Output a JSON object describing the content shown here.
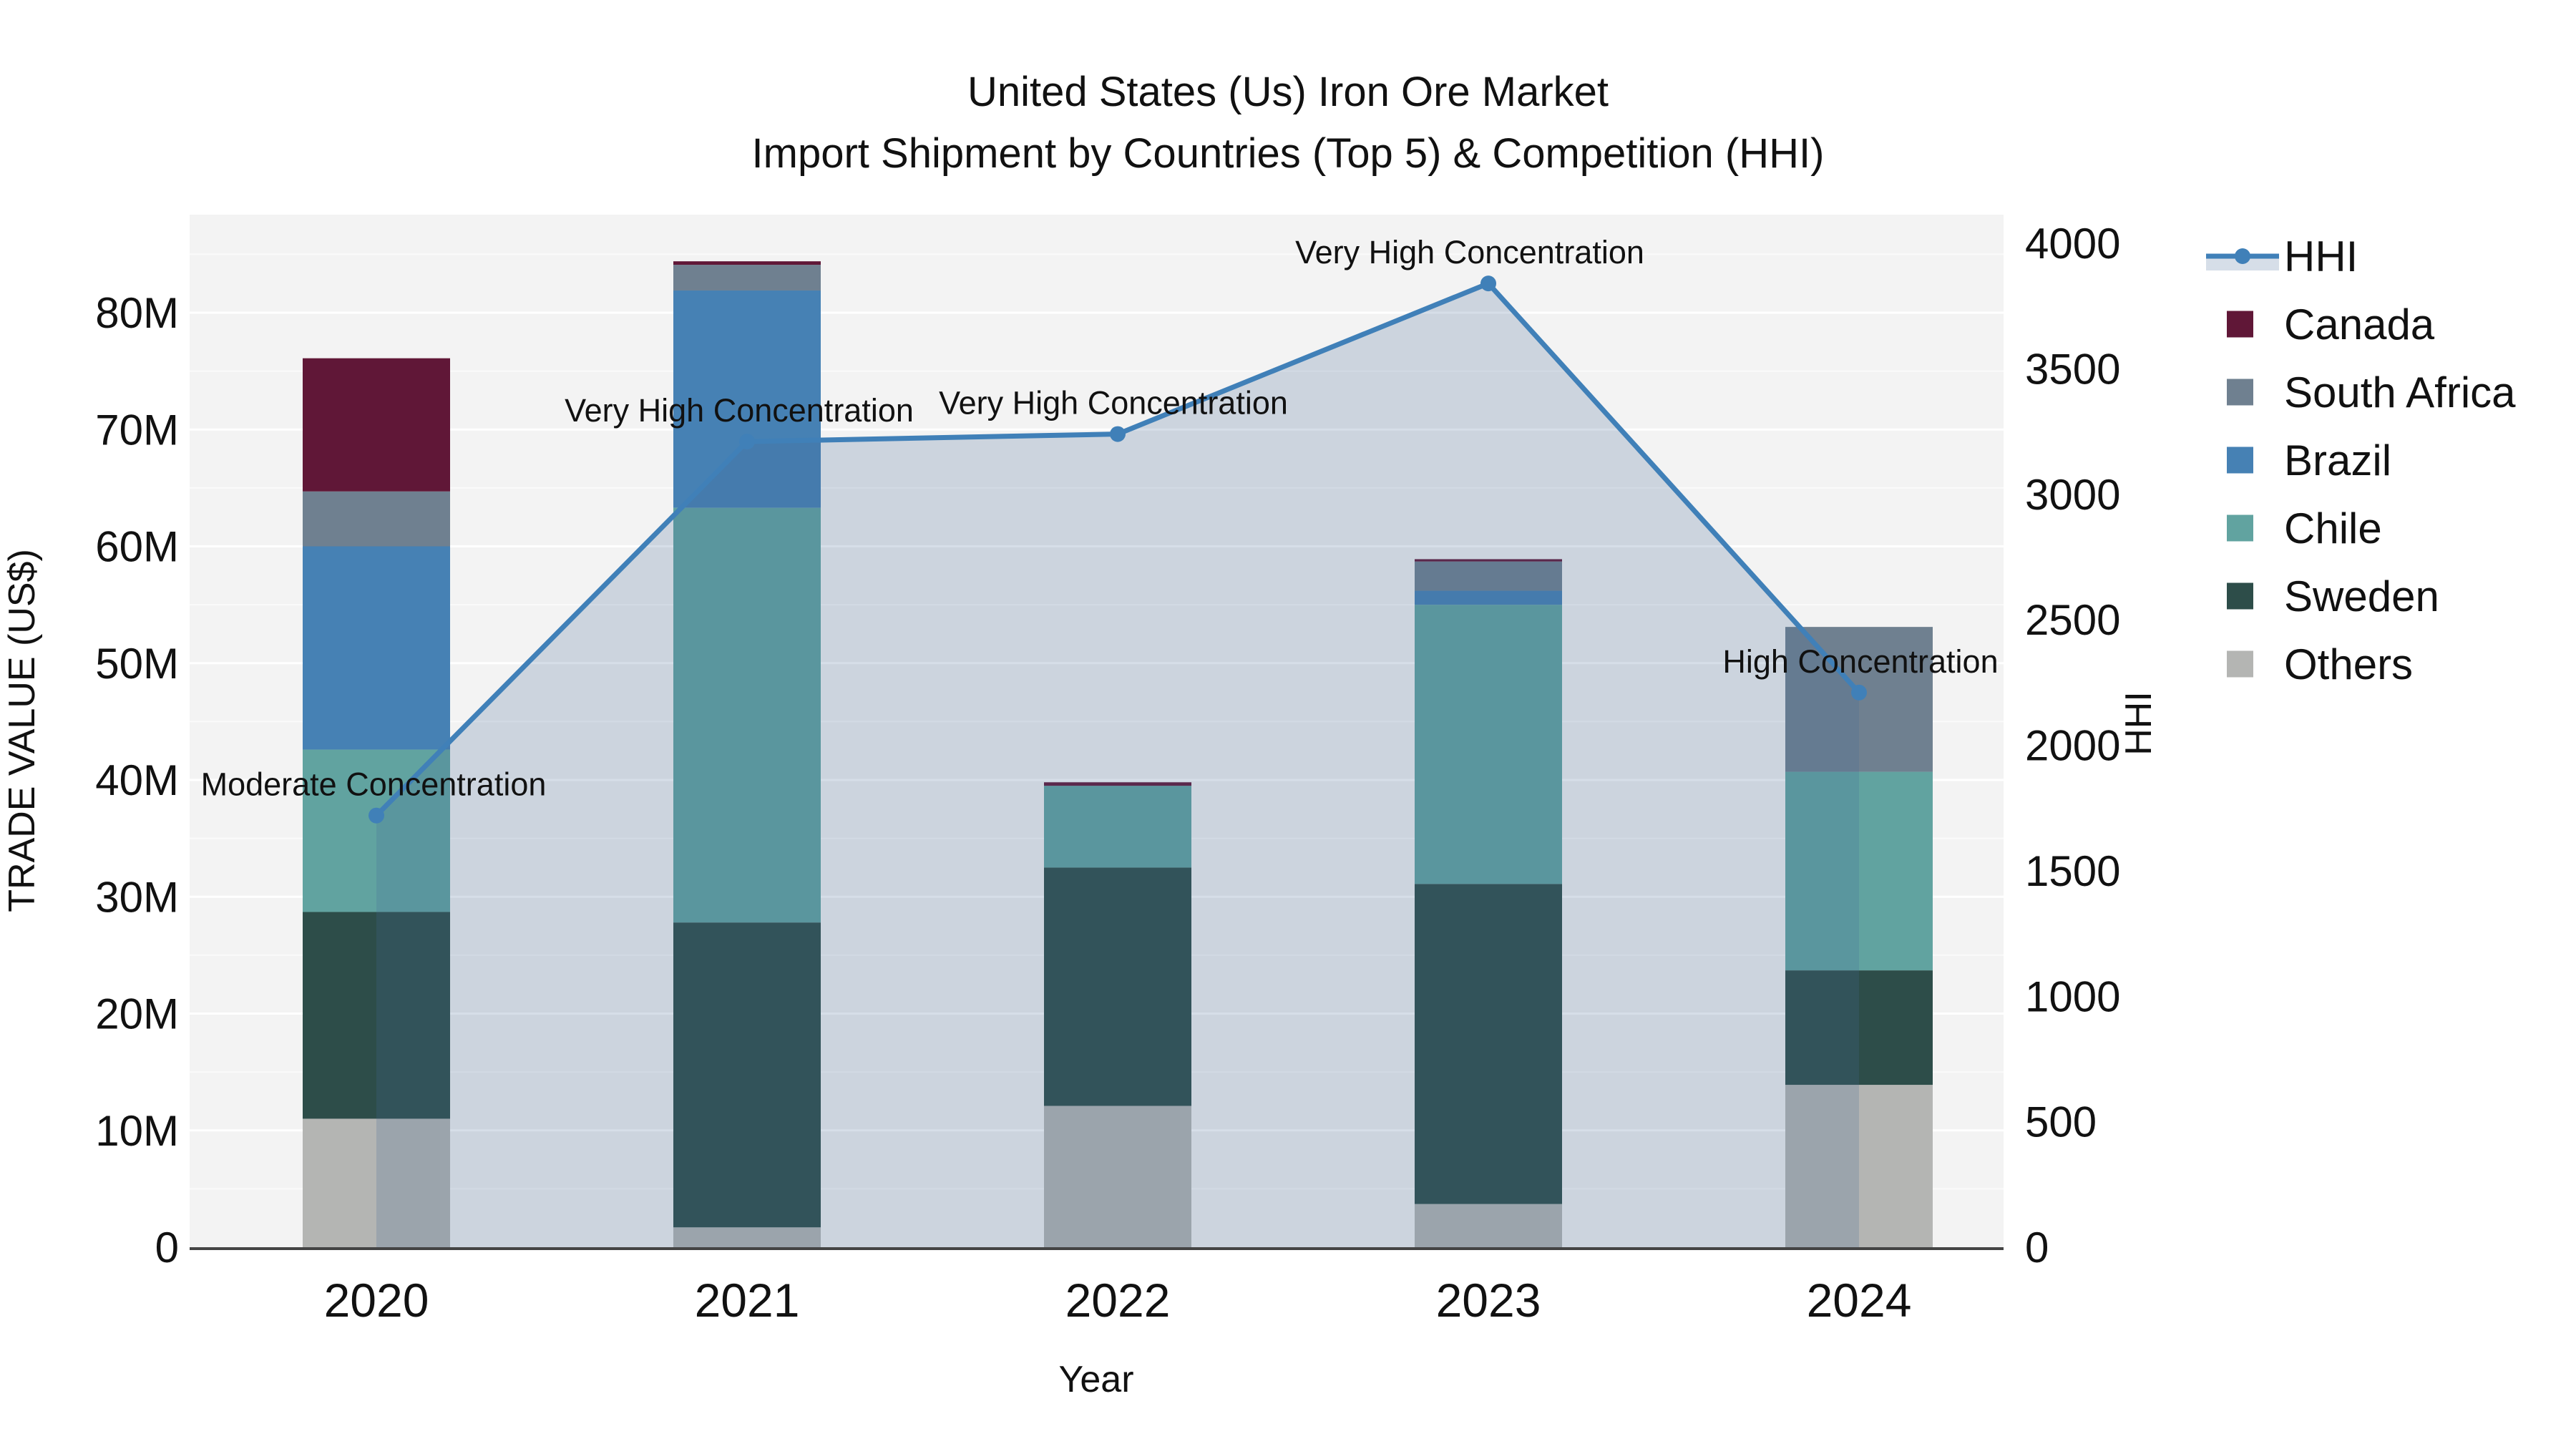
{
  "title": {
    "line1": "United States (Us) Iron Ore Market",
    "line2": "Import Shipment by Countries (Top 5) & Competition (HHI)"
  },
  "axes": {
    "x": {
      "title": "Year",
      "ticks": [
        "2020",
        "2021",
        "2022",
        "2023",
        "2024"
      ]
    },
    "y_left": {
      "title": "TRADE VALUE (US$)",
      "ticks": [
        "0",
        "10M",
        "20M",
        "30M",
        "40M",
        "50M",
        "60M",
        "70M",
        "80M"
      ],
      "tick_values_millions": [
        0,
        10,
        20,
        30,
        40,
        50,
        60,
        70,
        80
      ]
    },
    "y_right": {
      "title": "HHI",
      "ticks": [
        "0",
        "500",
        "1000",
        "1500",
        "2000",
        "2500",
        "3000",
        "3500",
        "4000"
      ],
      "tick_values": [
        0,
        500,
        1000,
        1500,
        2000,
        2500,
        3000,
        3500,
        4000
      ]
    }
  },
  "legend": {
    "items": [
      {
        "label": "HHI",
        "type": "line",
        "color": "#4080b8"
      },
      {
        "label": "Canada",
        "type": "swatch",
        "color": "#601737"
      },
      {
        "label": "South Africa",
        "type": "swatch",
        "color": "#6f8090"
      },
      {
        "label": "Brazil",
        "type": "swatch",
        "color": "#4681b4"
      },
      {
        "label": "Chile",
        "type": "swatch",
        "color": "#61a3a0"
      },
      {
        "label": "Sweden",
        "type": "swatch",
        "color": "#2d4d49"
      },
      {
        "label": "Others",
        "type": "swatch",
        "color": "#b4b5b3"
      }
    ]
  },
  "annotations": [
    {
      "text": "Moderate Concentration",
      "year": "2020"
    },
    {
      "text": "Very High Concentration",
      "year": "2021"
    },
    {
      "text": "Very High Concentration",
      "year": "2022"
    },
    {
      "text": "Very High Concentration",
      "year": "2023"
    },
    {
      "text": "High Concentration",
      "year": "2024"
    }
  ],
  "chart_data": {
    "type": "bar",
    "subtype": "stacked-bars-with-secondary-axis-line",
    "title": "United States (Us) Iron Ore Market — Import Shipment by Countries (Top 5) & Competition (HHI)",
    "xlabel": "Year",
    "ylabel_left": "TRADE VALUE (US$)",
    "ylabel_right": "HHI",
    "categories": [
      "2020",
      "2021",
      "2022",
      "2023",
      "2024"
    ],
    "bar_value_unit": "millions US$",
    "stack_order_bottom_to_top": [
      "Others",
      "Sweden",
      "Chile",
      "Brazil",
      "South Africa",
      "Canada"
    ],
    "series": [
      {
        "name": "Canada",
        "color": "#601737",
        "values": [
          11.4,
          0.3,
          0.3,
          0.2,
          0
        ]
      },
      {
        "name": "South Africa",
        "color": "#6f8090",
        "values": [
          4.7,
          2.2,
          0,
          2.5,
          12.4
        ]
      },
      {
        "name": "Brazil",
        "color": "#4681b4",
        "values": [
          17.4,
          18.6,
          0,
          1.2,
          0
        ]
      },
      {
        "name": "Chile",
        "color": "#61a3a0",
        "values": [
          13.9,
          35.5,
          7.0,
          23.9,
          17.0
        ]
      },
      {
        "name": "Sweden",
        "color": "#2d4d49",
        "values": [
          17.7,
          26.1,
          20.4,
          27.4,
          9.8
        ]
      },
      {
        "name": "Others",
        "color": "#b4b5b3",
        "values": [
          11.0,
          1.7,
          12.1,
          3.7,
          13.9
        ]
      }
    ],
    "bar_totals_millions": [
      76.1,
      84.4,
      39.8,
      58.9,
      53.1
    ],
    "line_series": {
      "name": "HHI",
      "axis": "right",
      "color": "#4080b8",
      "area_fill": "rgba(68,104,151,0.22)",
      "values": [
        1720,
        3210,
        3240,
        3840,
        2210
      ]
    },
    "ylim_left_millions": [
      0,
      88
    ],
    "ylim_right": [
      0,
      4080
    ],
    "grid": {
      "horizontal": true,
      "spacing_millions": 5,
      "color": "#ffffff"
    },
    "plot_background": "#f3f3f3",
    "legend_position": "right"
  },
  "colors": {
    "plot_bg": "#f3f3f3",
    "grid": "#ffffff",
    "axis_line": "#444444",
    "text": "#111111",
    "hhi_line": "#4080b8",
    "hhi_area": "rgba(68,104,151,0.22)"
  }
}
